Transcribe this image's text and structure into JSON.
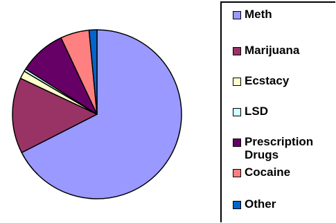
{
  "chart_data": {
    "type": "pie",
    "title": "",
    "start_angle_deg": 0,
    "direction": "clockwise",
    "slices": [
      {
        "label": "Meth",
        "value": 67.5,
        "color": "#9999FF"
      },
      {
        "label": "Marijuana",
        "value": 14.5,
        "color": "#993366"
      },
      {
        "label": "Ecstacy",
        "value": 1.5,
        "color": "#FFFFCC"
      },
      {
        "label": "LSD",
        "value": 0.5,
        "color": "#CCFFFF"
      },
      {
        "label": "Prescription Drugs",
        "value": 9.0,
        "color": "#660066"
      },
      {
        "label": "Cocaine",
        "value": 5.5,
        "color": "#FF8080"
      },
      {
        "label": "Other",
        "value": 1.5,
        "color": "#0066CC"
      }
    ],
    "legend": {
      "placement": "right",
      "entries": [
        "Meth",
        "Marijuana",
        "Ecstacy",
        "LSD",
        "Prescription Drugs",
        "Cocaine",
        "Other"
      ]
    }
  }
}
